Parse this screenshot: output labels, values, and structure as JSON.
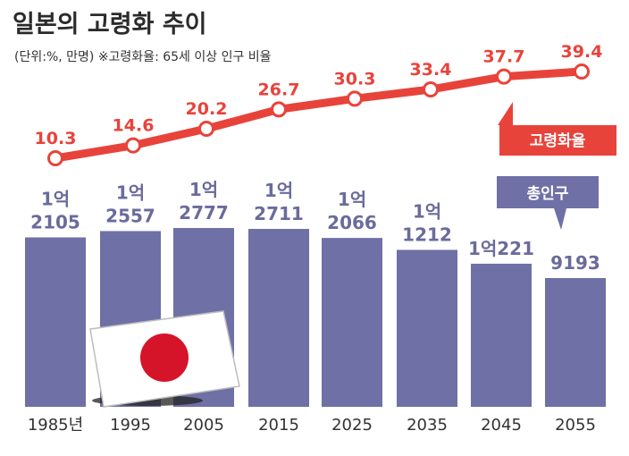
{
  "title": "일본의 고령화 추이",
  "subtitle": "(단위:%, 만명)  ※고령화율: 65세 이상 인구 비율",
  "colors": {
    "rate": "#e8433a",
    "population": "#6f70a6",
    "flag_red": "#d5142a"
  },
  "chart_data": {
    "type": "bar+line",
    "categories": [
      "1985년",
      "1995",
      "2005",
      "2015",
      "2025",
      "2035",
      "2045",
      "2055"
    ],
    "population_labels": [
      [
        "1억",
        "2105"
      ],
      [
        "1억",
        "2557"
      ],
      [
        "1억",
        "2777"
      ],
      [
        "1억",
        "2711"
      ],
      [
        "1억",
        "2066"
      ],
      [
        "1억",
        "1212"
      ],
      [
        "1억221"
      ],
      [
        "9193"
      ]
    ],
    "series": [
      {
        "name": "총인구",
        "type": "bar",
        "values": [
          12105,
          12557,
          12777,
          12711,
          12066,
          11212,
          10221,
          9193
        ]
      },
      {
        "name": "고령화율",
        "type": "line",
        "values": [
          10.3,
          14.6,
          20.2,
          26.7,
          30.3,
          33.4,
          37.7,
          39.4
        ]
      }
    ],
    "legend": {
      "line": "고령화율",
      "bar": "총인구"
    }
  }
}
